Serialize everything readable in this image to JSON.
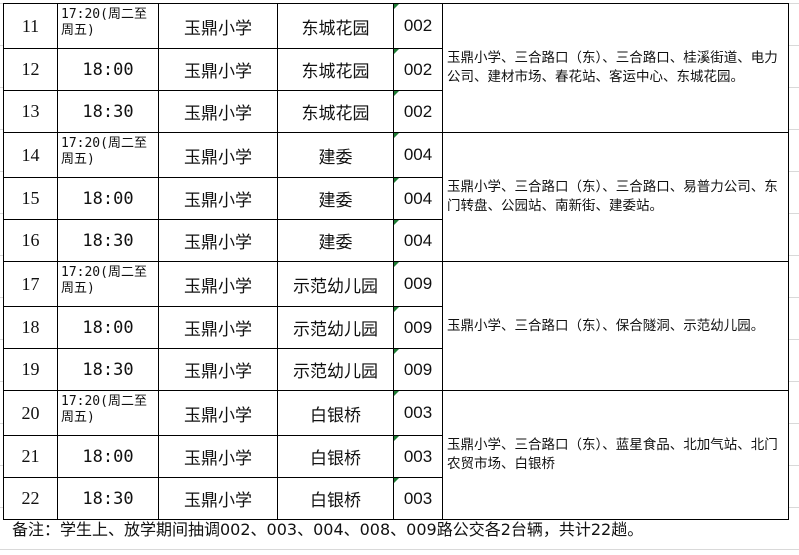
{
  "rows": [
    {
      "no": "11",
      "time": "17:20(周二至周五)",
      "from": "玉鼎小学",
      "to": "东城花园",
      "route": "002"
    },
    {
      "no": "12",
      "time": "18:00",
      "from": "玉鼎小学",
      "to": "东城花园",
      "route": "002"
    },
    {
      "no": "13",
      "time": "18:30",
      "from": "玉鼎小学",
      "to": "东城花园",
      "route": "002"
    },
    {
      "no": "14",
      "time": "17:20(周二至周五)",
      "from": "玉鼎小学",
      "to": "建委",
      "route": "004"
    },
    {
      "no": "15",
      "time": "18:00",
      "from": "玉鼎小学",
      "to": "建委",
      "route": "004"
    },
    {
      "no": "16",
      "time": "18:30",
      "from": "玉鼎小学",
      "to": "建委",
      "route": "004"
    },
    {
      "no": "17",
      "time": "17:20(周二至周五)",
      "from": "玉鼎小学",
      "to": "示范幼儿园",
      "route": "009"
    },
    {
      "no": "18",
      "time": "18:00",
      "from": "玉鼎小学",
      "to": "示范幼儿园",
      "route": "009"
    },
    {
      "no": "19",
      "time": "18:30",
      "from": "玉鼎小学",
      "to": "示范幼儿园",
      "route": "009"
    },
    {
      "no": "20",
      "time": "17:20(周二至周五)",
      "from": "玉鼎小学",
      "to": "白银桥",
      "route": "003"
    },
    {
      "no": "21",
      "time": "18:00",
      "from": "玉鼎小学",
      "to": "白银桥",
      "route": "003"
    },
    {
      "no": "22",
      "time": "18:30",
      "from": "玉鼎小学",
      "to": "白银桥",
      "route": "003"
    }
  ],
  "stops": [
    "玉鼎小学、三合路口（东）、三合路口、桂溪街道、电力公司、建材市场、春花站、客运中心、东城花园。",
    "玉鼎小学、三合路口（东）、三合路口、易普力公司、东门转盘、公园站、南新街、建委站。",
    "玉鼎小学、三合路口（东）、保合隧洞、示范幼儿园。",
    "玉鼎小学、三合路口（东）、蓝星食品、北加气站、北门农贸市场、白银桥"
  ],
  "note": "备注：学生上、放学期间抽调002、003、004、008、009路公交各2台辆，共计22趟。"
}
